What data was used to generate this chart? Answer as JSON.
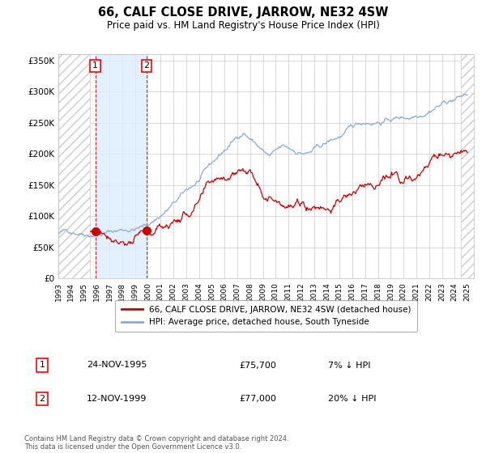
{
  "title": "66, CALF CLOSE DRIVE, JARROW, NE32 4SW",
  "subtitle": "Price paid vs. HM Land Registry's House Price Index (HPI)",
  "property_label": "66, CALF CLOSE DRIVE, JARROW, NE32 4SW (detached house)",
  "hpi_label": "HPI: Average price, detached house, South Tyneside",
  "transactions": [
    {
      "num": 1,
      "date": "24-NOV-1995",
      "price": 75700,
      "year": 1995.9,
      "pct": "7% ↓ HPI"
    },
    {
      "num": 2,
      "date": "12-NOV-1999",
      "price": 77000,
      "year": 1999.9,
      "pct": "20% ↓ HPI"
    }
  ],
  "footnote": "Contains HM Land Registry data © Crown copyright and database right 2024.\nThis data is licensed under the Open Government Licence v3.0.",
  "property_color": "#cc0000",
  "hpi_color": "#88aadd",
  "shade_color": "#ddeeff",
  "ylim": [
    0,
    360000
  ],
  "xlim_start": 1993.0,
  "xlim_end": 2025.5,
  "hatch_end_year": 1995.5,
  "hatch_start_year": 2024.5
}
